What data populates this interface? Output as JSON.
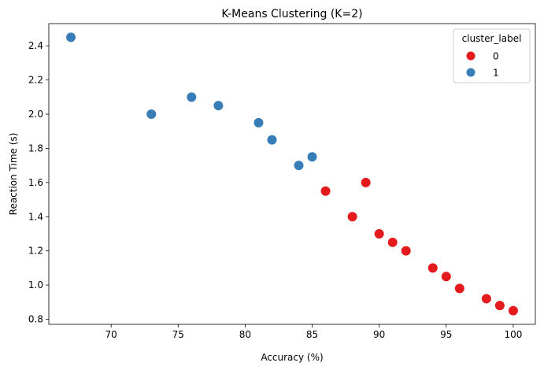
{
  "chart_data": {
    "type": "scatter",
    "title": "K-Means Clustering (K=2)",
    "xlabel": "Accuracy (%)",
    "ylabel": "Reaction Time (s)",
    "xlim": [
      65.35,
      101.65
    ],
    "ylim": [
      0.77,
      2.53
    ],
    "xticks": [
      70,
      75,
      80,
      85,
      90,
      95,
      100
    ],
    "yticks": [
      0.8,
      1.0,
      1.2,
      1.4,
      1.6,
      1.8,
      2.0,
      2.2,
      2.4
    ],
    "grid": false,
    "legend": {
      "title": "cluster_label",
      "placement": "top-right"
    },
    "series": [
      {
        "name": "0",
        "color": "#e41a1c",
        "points": [
          [
            86,
            1.55
          ],
          [
            88,
            1.4
          ],
          [
            89,
            1.6
          ],
          [
            90,
            1.3
          ],
          [
            91,
            1.25
          ],
          [
            92,
            1.2
          ],
          [
            94,
            1.1
          ],
          [
            95,
            1.05
          ],
          [
            96,
            0.98
          ],
          [
            98,
            0.92
          ],
          [
            99,
            0.88
          ],
          [
            100,
            0.85
          ]
        ]
      },
      {
        "name": "1",
        "color": "#377eb8",
        "points": [
          [
            67,
            2.45
          ],
          [
            73,
            2.0
          ],
          [
            76,
            2.1
          ],
          [
            78,
            2.05
          ],
          [
            81,
            1.95
          ],
          [
            82,
            1.85
          ],
          [
            84,
            1.7
          ],
          [
            85,
            1.75
          ]
        ]
      }
    ]
  }
}
